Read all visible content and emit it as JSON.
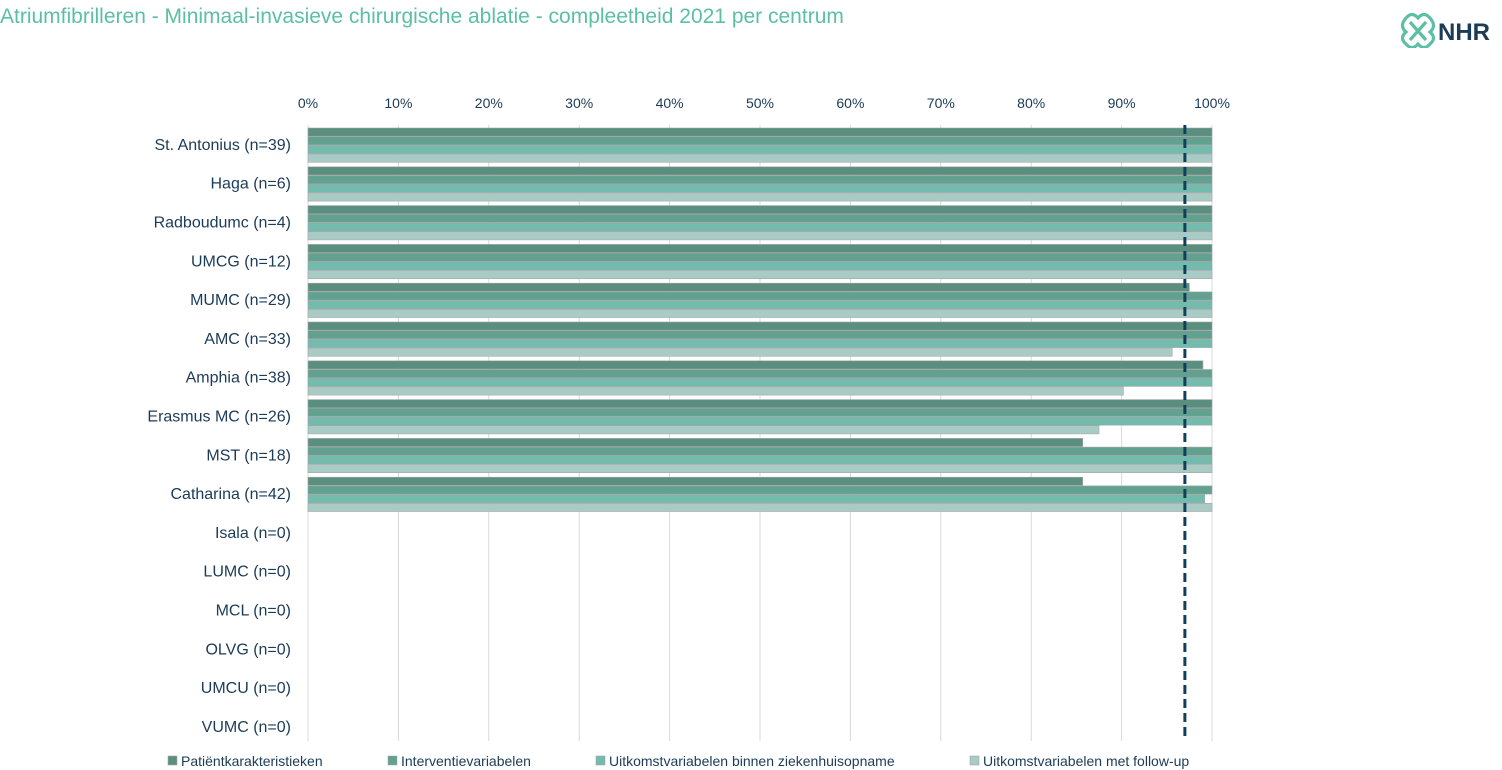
{
  "title": "Atriumfibrilleren - Minimaal-invasieve chirurgische ablatie - compleetheid 2021 per centrum",
  "logo": {
    "text": "NHR",
    "icon": "nhr-knot-logo-icon",
    "color": "#5bbfa4",
    "text_color": "#1b3b57"
  },
  "chart_data": {
    "type": "bar",
    "orientation": "horizontal",
    "x_ticks": [
      "0%",
      "10%",
      "20%",
      "30%",
      "40%",
      "50%",
      "60%",
      "70%",
      "80%",
      "90%",
      "100%"
    ],
    "xlim": [
      0,
      100
    ],
    "grid": true,
    "legend_position": "bottom",
    "reference_line": {
      "value": 97,
      "style": "dashed",
      "color": "#0f3f5a"
    },
    "categories": [
      "St. Antonius (n=39)",
      "Haga (n=6)",
      "Radboudumc (n=4)",
      "UMCG (n=12)",
      "MUMC (n=29)",
      "AMC (n=33)",
      "Amphia (n=38)",
      "Erasmus MC (n=26)",
      "MST (n=18)",
      "Catharina (n=42)",
      "Isala (n=0)",
      "LUMC (n=0)",
      "MCL (n=0)",
      "OLVG (n=0)",
      "UMCU (n=0)",
      "VUMC (n=0)"
    ],
    "series": [
      {
        "name": "Patiëntkarakteristieken",
        "color": "#5a8f7f",
        "values": [
          100,
          100,
          100,
          100,
          97.5,
          100,
          99,
          100,
          85.7,
          85.7,
          null,
          null,
          null,
          null,
          null,
          null
        ]
      },
      {
        "name": "Interventievariabelen",
        "color": "#62a090",
        "values": [
          100,
          100,
          100,
          100,
          100,
          100,
          100,
          100,
          100,
          100,
          null,
          null,
          null,
          null,
          null,
          null
        ]
      },
      {
        "name": "Uitkomstvariabelen binnen ziekenhuisopname",
        "color": "#72bbad",
        "values": [
          100,
          100,
          100,
          100,
          100,
          100,
          100,
          100,
          100,
          99.2,
          null,
          null,
          null,
          null,
          null,
          null
        ]
      },
      {
        "name": "Uitkomstvariabelen met follow-up",
        "color": "#a9cbc5",
        "values": [
          100,
          100,
          100,
          100,
          100,
          95.6,
          90.2,
          87.5,
          100,
          100,
          null,
          null,
          null,
          null,
          null,
          null
        ]
      }
    ]
  }
}
